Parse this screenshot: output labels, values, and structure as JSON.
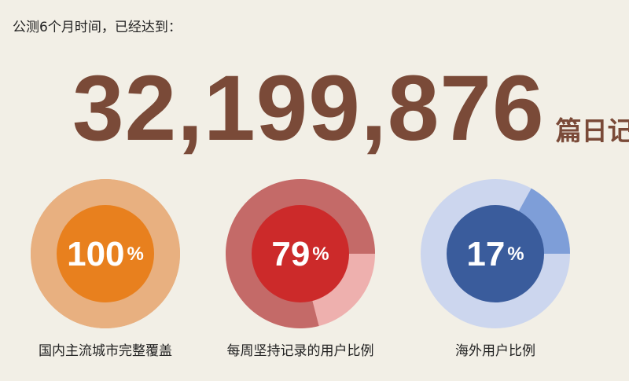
{
  "intro": "公测6个月时间，已经达到：",
  "headline": {
    "count": "32,199,876",
    "unit": "篇日记"
  },
  "stats": [
    {
      "value": "100",
      "percent_sign": "%",
      "percent": 100,
      "label": "国内主流城市完整覆盖",
      "colors": {
        "track": "#e8b080",
        "fill": "#e8b080",
        "center": "#e8801e"
      }
    },
    {
      "value": "79",
      "percent_sign": "%",
      "percent": 79,
      "label": "每周坚持记录的用户比例",
      "colors": {
        "track": "#eeb0ae",
        "fill": "#c46a68",
        "center": "#cc2a2a"
      }
    },
    {
      "value": "17",
      "percent_sign": "%",
      "percent": 17,
      "label": "海外用户比例",
      "colors": {
        "track": "#ccd6ee",
        "fill": "#7e9ed8",
        "center": "#3a5c9c"
      }
    }
  ]
}
